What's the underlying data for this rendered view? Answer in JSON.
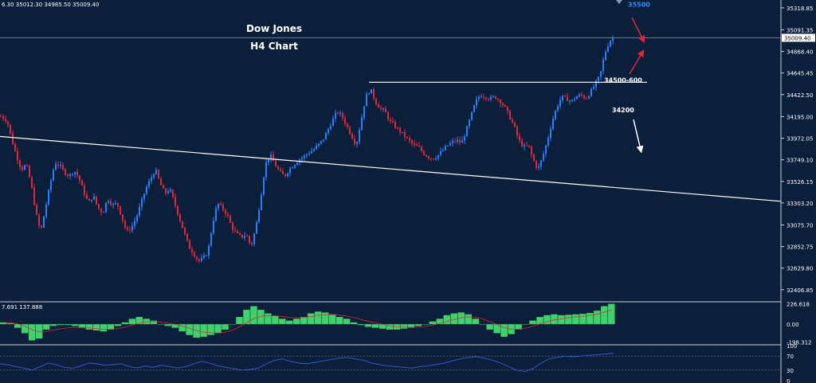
{
  "ohlc_readout": "6.30 35012.30 34985.50 35009.40",
  "colors": {
    "background": "#0b1e3a",
    "bull": "#2a7fff",
    "bear": "#e0283a",
    "histogram": "#3fd16a",
    "signal": "#e0283a",
    "rsi_line": "#3a5bd9",
    "text": "#ffffff",
    "annotation_blue": "#2a8cff",
    "arrow_red": "#e0283a"
  },
  "chart_data": [
    {
      "type": "candlestick",
      "title": "Dow Jones",
      "subtitle": "H4 Chart",
      "ylim": [
        32290,
        35400
      ],
      "y_ticks": [
        "35318.85",
        "35091.35",
        "34868.40",
        "34645.45",
        "34422.50",
        "34195.00",
        "33972.05",
        "33749.10",
        "33526.15",
        "33303.20",
        "33075.70",
        "32852.75",
        "32629.80",
        "32406.85"
      ],
      "y_tick_values": [
        35318.85,
        35091.35,
        34868.4,
        34645.45,
        34422.5,
        34195.0,
        33972.05,
        33749.1,
        33526.15,
        33303.2,
        33075.7,
        32852.75,
        32629.8,
        32406.85
      ],
      "current_price_label": "35009.40",
      "current_price": 35009.4,
      "close_path": [
        [
          0,
          34200
        ],
        [
          8,
          34150
        ],
        [
          14,
          33950
        ],
        [
          20,
          33780
        ],
        [
          26,
          33650
        ],
        [
          32,
          33700
        ],
        [
          38,
          33500
        ],
        [
          44,
          33200
        ],
        [
          50,
          33000
        ],
        [
          56,
          33250
        ],
        [
          62,
          33500
        ],
        [
          68,
          33720
        ],
        [
          74,
          33690
        ],
        [
          80,
          33620
        ],
        [
          86,
          33580
        ],
        [
          92,
          33640
        ],
        [
          98,
          33560
        ],
        [
          104,
          33420
        ],
        [
          110,
          33300
        ],
        [
          116,
          33380
        ],
        [
          122,
          33250
        ],
        [
          128,
          33200
        ],
        [
          134,
          33350
        ],
        [
          140,
          33280
        ],
        [
          146,
          33300
        ],
        [
          152,
          33150
        ],
        [
          158,
          33000
        ],
        [
          164,
          33050
        ],
        [
          170,
          33150
        ],
        [
          176,
          33300
        ],
        [
          182,
          33450
        ],
        [
          188,
          33550
        ],
        [
          194,
          33650
        ],
        [
          200,
          33500
        ],
        [
          206,
          33400
        ],
        [
          212,
          33450
        ],
        [
          218,
          33300
        ],
        [
          224,
          33150
        ],
        [
          230,
          33000
        ],
        [
          236,
          32850
        ],
        [
          242,
          32780
        ],
        [
          248,
          32700
        ],
        [
          254,
          32730
        ],
        [
          260,
          32800
        ],
        [
          266,
          33100
        ],
        [
          272,
          33300
        ],
        [
          278,
          33250
        ],
        [
          284,
          33180
        ],
        [
          290,
          33050
        ],
        [
          296,
          32980
        ],
        [
          302,
          32950
        ],
        [
          308,
          32980
        ],
        [
          314,
          32850
        ],
        [
          320,
          33050
        ],
        [
          326,
          33350
        ],
        [
          332,
          33700
        ],
        [
          338,
          33800
        ],
        [
          344,
          33700
        ],
        [
          350,
          33620
        ],
        [
          356,
          33580
        ],
        [
          362,
          33650
        ],
        [
          368,
          33700
        ],
        [
          374,
          33750
        ],
        [
          380,
          33780
        ],
        [
          386,
          33820
        ],
        [
          392,
          33850
        ],
        [
          398,
          33900
        ],
        [
          404,
          33950
        ],
        [
          410,
          34050
        ],
        [
          416,
          34150
        ],
        [
          422,
          34250
        ],
        [
          428,
          34200
        ],
        [
          434,
          34100
        ],
        [
          440,
          34000
        ],
        [
          446,
          33900
        ],
        [
          452,
          34150
        ],
        [
          458,
          34400
        ],
        [
          464,
          34480
        ],
        [
          470,
          34350
        ],
        [
          476,
          34280
        ],
        [
          482,
          34250
        ],
        [
          488,
          34150
        ],
        [
          494,
          34100
        ],
        [
          500,
          34050
        ],
        [
          506,
          34000
        ],
        [
          512,
          33950
        ],
        [
          518,
          33900
        ],
        [
          524,
          33880
        ],
        [
          530,
          33820
        ],
        [
          536,
          33780
        ],
        [
          542,
          33760
        ],
        [
          548,
          33790
        ],
        [
          554,
          33840
        ],
        [
          560,
          33890
        ],
        [
          566,
          33930
        ],
        [
          572,
          33950
        ],
        [
          578,
          33920
        ],
        [
          584,
          34050
        ],
        [
          590,
          34200
        ],
        [
          596,
          34350
        ],
        [
          602,
          34420
        ],
        [
          608,
          34400
        ],
        [
          614,
          34380
        ],
        [
          620,
          34400
        ],
        [
          626,
          34360
        ],
        [
          632,
          34300
        ],
        [
          638,
          34200
        ],
        [
          644,
          34100
        ],
        [
          650,
          33950
        ],
        [
          656,
          33880
        ],
        [
          662,
          33900
        ],
        [
          668,
          33750
        ],
        [
          674,
          33650
        ],
        [
          680,
          33780
        ],
        [
          686,
          33950
        ],
        [
          692,
          34150
        ],
        [
          698,
          34300
        ],
        [
          704,
          34400
        ],
        [
          710,
          34380
        ],
        [
          716,
          34350
        ],
        [
          722,
          34400
        ],
        [
          728,
          34420
        ],
        [
          734,
          34380
        ],
        [
          740,
          34450
        ],
        [
          746,
          34530
        ],
        [
          752,
          34620
        ],
        [
          758,
          34850
        ],
        [
          764,
          34980
        ],
        [
          770,
          35009
        ]
      ],
      "annotations": [
        {
          "text": "35500",
          "price": 35330,
          "color": "blue"
        },
        {
          "text": "34500-600",
          "price": 34548
        },
        {
          "text": "34200",
          "price": 34240
        }
      ],
      "resistance_level": 34550,
      "trendline": {
        "start_price": 33990,
        "end_price": 33320
      }
    },
    {
      "type": "histogram",
      "indicator_label": "7.691 137.888",
      "ylim": [
        -220,
        240
      ],
      "y_ticks": [
        "226.618",
        "0.00",
        "-198.312"
      ],
      "y_tick_values": [
        226.618,
        0.0,
        -198.312
      ],
      "values": [
        20,
        10,
        -40,
        -100,
        -180,
        -160,
        -60,
        -20,
        -10,
        -10,
        -20,
        -40,
        -60,
        -70,
        -80,
        -60,
        -20,
        20,
        60,
        80,
        60,
        40,
        0,
        -20,
        -40,
        -80,
        -120,
        -150,
        -140,
        -120,
        -100,
        -60,
        0,
        80,
        160,
        200,
        160,
        120,
        90,
        60,
        40,
        60,
        80,
        120,
        140,
        130,
        110,
        80,
        60,
        20,
        -10,
        -30,
        -40,
        -50,
        -60,
        -60,
        -50,
        -40,
        -20,
        0,
        30,
        60,
        100,
        120,
        130,
        110,
        60,
        0,
        -60,
        -100,
        -140,
        -110,
        -60,
        0,
        40,
        80,
        100,
        110,
        100,
        105,
        110,
        115,
        125,
        150,
        200,
        226
      ]
    },
    {
      "type": "line",
      "indicator": "rsi",
      "ylim": [
        0,
        100
      ],
      "y_ticks": [
        "100",
        "70",
        "30",
        "0"
      ],
      "y_tick_values": [
        100,
        70,
        30,
        0
      ],
      "values": [
        48,
        45,
        40,
        35,
        30,
        40,
        50,
        45,
        38,
        35,
        42,
        50,
        48,
        44,
        46,
        48,
        40,
        36,
        42,
        38,
        44,
        40,
        36,
        40,
        48,
        55,
        50,
        42,
        38,
        34,
        30,
        32,
        36,
        48,
        58,
        62,
        55,
        50,
        48,
        52,
        56,
        60,
        64,
        66,
        62,
        58,
        50,
        46,
        42,
        40,
        38,
        36,
        40,
        42,
        46,
        50,
        56,
        62,
        66,
        68,
        64,
        58,
        50,
        40,
        30,
        26,
        34,
        50,
        62,
        66,
        70,
        68,
        70,
        72,
        74,
        76,
        78
      ]
    }
  ]
}
